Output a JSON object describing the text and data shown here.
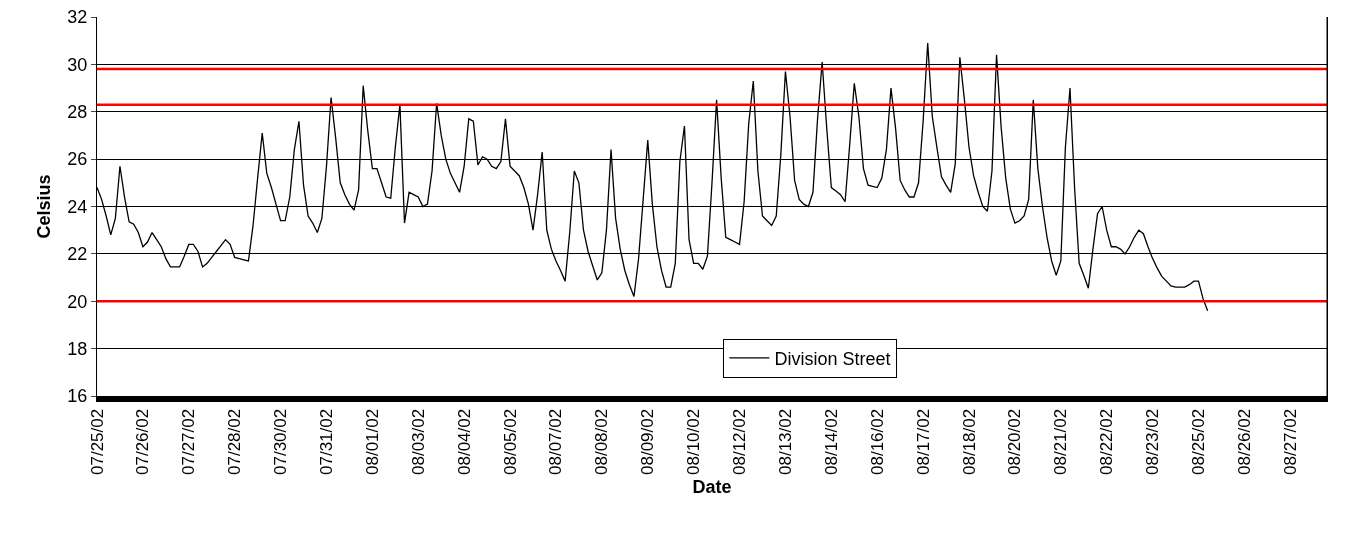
{
  "chart_data": {
    "type": "line",
    "xlabel": "Date",
    "ylabel": "Celsius",
    "categories": [
      "07/25/02",
      null,
      null,
      null,
      null,
      null,
      null,
      null,
      null,
      null,
      "07/26/02",
      null,
      null,
      null,
      null,
      null,
      null,
      null,
      null,
      null,
      "07/27/02",
      null,
      null,
      null,
      null,
      null,
      null,
      null,
      null,
      null,
      "07/28/02",
      null,
      null,
      null,
      null,
      null,
      null,
      null,
      null,
      null,
      "07/30/02",
      null,
      null,
      null,
      null,
      null,
      null,
      null,
      null,
      null,
      "07/31/02",
      null,
      null,
      null,
      null,
      null,
      null,
      null,
      null,
      null,
      "08/01/02",
      null,
      null,
      null,
      null,
      null,
      null,
      null,
      null,
      null,
      "08/03/02",
      null,
      null,
      null,
      null,
      null,
      null,
      null,
      null,
      null,
      "08/04/02",
      null,
      null,
      null,
      null,
      null,
      null,
      null,
      null,
      null,
      "08/05/02",
      null,
      null,
      null,
      null,
      null,
      null,
      null,
      null,
      null,
      "08/07/02",
      null,
      null,
      null,
      null,
      null,
      null,
      null,
      null,
      null,
      "08/08/02",
      null,
      null,
      null,
      null,
      null,
      null,
      null,
      null,
      null,
      "08/09/02",
      null,
      null,
      null,
      null,
      null,
      null,
      null,
      null,
      null,
      "08/10/02",
      null,
      null,
      null,
      null,
      null,
      null,
      null,
      null,
      null,
      "08/12/02",
      null,
      null,
      null,
      null,
      null,
      null,
      null,
      null,
      null,
      "08/13/02",
      null,
      null,
      null,
      null,
      null,
      null,
      null,
      null,
      null,
      "08/14/02",
      null,
      null,
      null,
      null,
      null,
      null,
      null,
      null,
      null,
      "08/16/02",
      null,
      null,
      null,
      null,
      null,
      null,
      null,
      null,
      null,
      "08/17/02",
      null,
      null,
      null,
      null,
      null,
      null,
      null,
      null,
      null,
      "08/18/02",
      null,
      null,
      null,
      null,
      null,
      null,
      null,
      null,
      null,
      "08/20/02",
      null,
      null,
      null,
      null,
      null,
      null,
      null,
      null,
      null,
      "08/21/02",
      null,
      null,
      null,
      null,
      null,
      null,
      null,
      null,
      null,
      "08/22/02",
      null,
      null,
      null,
      null,
      null,
      null,
      null,
      null,
      null,
      "08/23/02",
      null,
      null,
      null,
      null,
      null,
      null,
      null,
      null,
      null,
      "08/25/02",
      null,
      null,
      null,
      null,
      null,
      null,
      null,
      null,
      null,
      "08/26/02",
      null,
      null,
      null,
      null,
      null,
      null,
      null,
      null,
      null,
      "08/27/02",
      null,
      null,
      null,
      null,
      null,
      null,
      null,
      null
    ],
    "series": [
      {
        "name": "Division Street",
        "color": "#000000",
        "values": [
          24.8,
          24.3,
          23.6,
          22.8,
          23.5,
          25.7,
          24.4,
          23.35,
          23.25,
          22.9,
          22.3,
          22.5,
          22.9,
          22.6,
          22.3,
          21.8,
          21.45,
          21.45,
          21.45,
          21.9,
          22.4,
          22.4,
          22.1,
          21.45,
          21.6,
          21.85,
          22.1,
          22.35,
          22.6,
          22.4,
          21.85,
          21.8,
          21.75,
          21.7,
          23.2,
          25.2,
          27.1,
          25.4,
          24.8,
          24.1,
          23.4,
          23.4,
          24.4,
          26.4,
          27.6,
          24.9,
          23.6,
          23.3,
          22.9,
          23.5,
          25.7,
          28.6,
          26.9,
          25.0,
          24.5,
          24.1,
          23.85,
          24.7,
          29.1,
          27.2,
          25.6,
          25.6,
          25.0,
          24.4,
          24.35,
          26.5,
          28.3,
          23.3,
          24.6,
          24.5,
          24.4,
          24.0,
          24.1,
          25.5,
          28.35,
          27.0,
          26.0,
          25.4,
          25.0,
          24.6,
          25.7,
          27.7,
          27.6,
          25.75,
          26.1,
          26.0,
          25.7,
          25.6,
          25.9,
          27.7,
          25.7,
          25.5,
          25.3,
          24.8,
          24.1,
          23.0,
          24.5,
          26.3,
          23.0,
          22.2,
          21.7,
          21.3,
          20.85,
          22.9,
          25.5,
          25.0,
          23.0,
          22.1,
          21.5,
          20.9,
          21.2,
          23.0,
          26.4,
          23.5,
          22.2,
          21.3,
          20.7,
          20.2,
          21.8,
          24.3,
          26.8,
          24.1,
          22.3,
          21.3,
          20.6,
          20.6,
          21.6,
          25.9,
          27.4,
          22.6,
          21.6,
          21.6,
          21.35,
          21.9,
          25.0,
          28.5,
          25.2,
          22.7,
          22.6,
          22.5,
          22.4,
          24.2,
          27.5,
          29.3,
          25.5,
          23.6,
          23.4,
          23.2,
          23.6,
          26.2,
          29.7,
          27.8,
          25.1,
          24.3,
          24.1,
          24.0,
          24.6,
          27.7,
          30.1,
          27.3,
          24.8,
          24.65,
          24.5,
          24.2,
          26.6,
          29.2,
          27.8,
          25.6,
          24.9,
          24.85,
          24.8,
          25.2,
          26.4,
          29.0,
          27.3,
          25.1,
          24.7,
          24.4,
          24.4,
          25.0,
          27.6,
          30.9,
          27.8,
          26.5,
          25.25,
          24.9,
          24.6,
          25.8,
          30.3,
          28.5,
          26.5,
          25.3,
          24.6,
          24.0,
          23.8,
          25.5,
          30.4,
          27.35,
          25.2,
          23.9,
          23.3,
          23.4,
          23.6,
          24.3,
          28.5,
          25.6,
          24.0,
          22.7,
          21.7,
          21.1,
          21.7,
          26.5,
          29.0,
          24.8,
          21.6,
          21.1,
          20.55,
          22.2,
          23.7,
          24.0,
          23.0,
          22.3,
          22.3,
          22.2,
          22.0,
          22.3,
          22.7,
          23.0,
          22.85,
          22.3,
          21.8,
          21.4,
          21.05,
          20.85,
          20.65,
          20.6,
          20.6,
          20.6,
          20.7,
          20.85,
          20.85,
          20.1,
          19.6,
          null,
          null,
          null,
          null,
          null,
          null,
          null,
          null,
          null,
          null,
          null,
          null,
          null,
          null,
          null,
          null,
          null,
          null,
          null,
          null,
          null,
          null,
          null,
          null,
          null,
          null
        ]
      }
    ],
    "ylim": [
      16,
      32
    ],
    "yticks": [
      16,
      18,
      20,
      22,
      24,
      26,
      28,
      30,
      32
    ],
    "grid": "y",
    "legend": "bottom",
    "ref_lines": [
      {
        "axis": "y",
        "value": 29.8,
        "color": "#ff0000"
      },
      {
        "axis": "y",
        "value": 28.3,
        "color": "#ff0000"
      },
      {
        "axis": "y",
        "value": 20.0,
        "color": "#ff0000"
      }
    ]
  }
}
